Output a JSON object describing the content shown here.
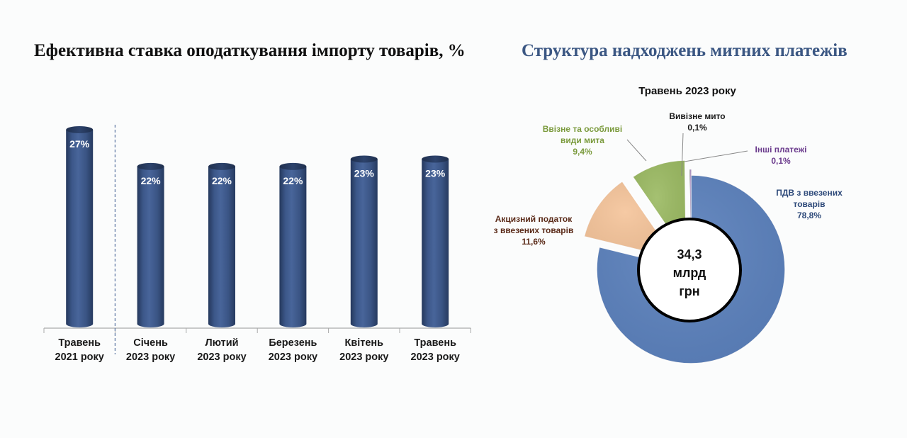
{
  "left_title": "Ефективна ставка оподаткування імпорту товарів, %",
  "right_title": "Структура надходжень митних платежів",
  "chart_data": [
    {
      "type": "bar",
      "title": "Ефективна ставка оподаткування імпорту товарів, %",
      "categories": [
        [
          "Травень",
          "2021 року"
        ],
        [
          "Січень",
          "2023 року"
        ],
        [
          "Лютий",
          "2023 року"
        ],
        [
          "Березень",
          "2023 року"
        ],
        [
          "Квітень",
          "2023 року"
        ],
        [
          "Травень",
          "2023 року"
        ]
      ],
      "values": [
        27,
        22,
        22,
        22,
        23,
        23
      ],
      "value_labels": [
        "27%",
        "22%",
        "22%",
        "22%",
        "23%",
        "23%"
      ],
      "ylim": [
        0,
        30
      ],
      "grid": false,
      "divider_after_index": 0,
      "bar_color": "#3e5a8a"
    },
    {
      "type": "pie",
      "title": "Структура надходжень митних платежів",
      "subtitle": "Травень 2023 року",
      "center_text": [
        "34,3",
        "млрд",
        "грн"
      ],
      "slices": [
        {
          "label": [
            "ПДВ з ввезених",
            "товарів"
          ],
          "pct_label": "78,8%",
          "value": 78.8,
          "color": "#5b81bd",
          "label_color": "#2e4a7a"
        },
        {
          "label": [
            "Акцизний податок",
            "з ввезених товарів"
          ],
          "pct_label": "11,6%",
          "value": 11.6,
          "color": "#f5c49a",
          "label_color": "#5a2a18"
        },
        {
          "label": [
            "Ввізне та особливі",
            "види мита"
          ],
          "pct_label": "9,4%",
          "value": 9.4,
          "color": "#9bba62",
          "label_color": "#7a9a3c"
        },
        {
          "label": [
            "Вивізне мито"
          ],
          "pct_label": "0,1%",
          "value": 0.1,
          "color": "#333333",
          "label_color": "#1a1a1a"
        },
        {
          "label": [
            "Інші платежі"
          ],
          "pct_label": "0,1%",
          "value": 0.1,
          "color": "#7d4ea0",
          "label_color": "#6a3a8c"
        }
      ]
    }
  ]
}
